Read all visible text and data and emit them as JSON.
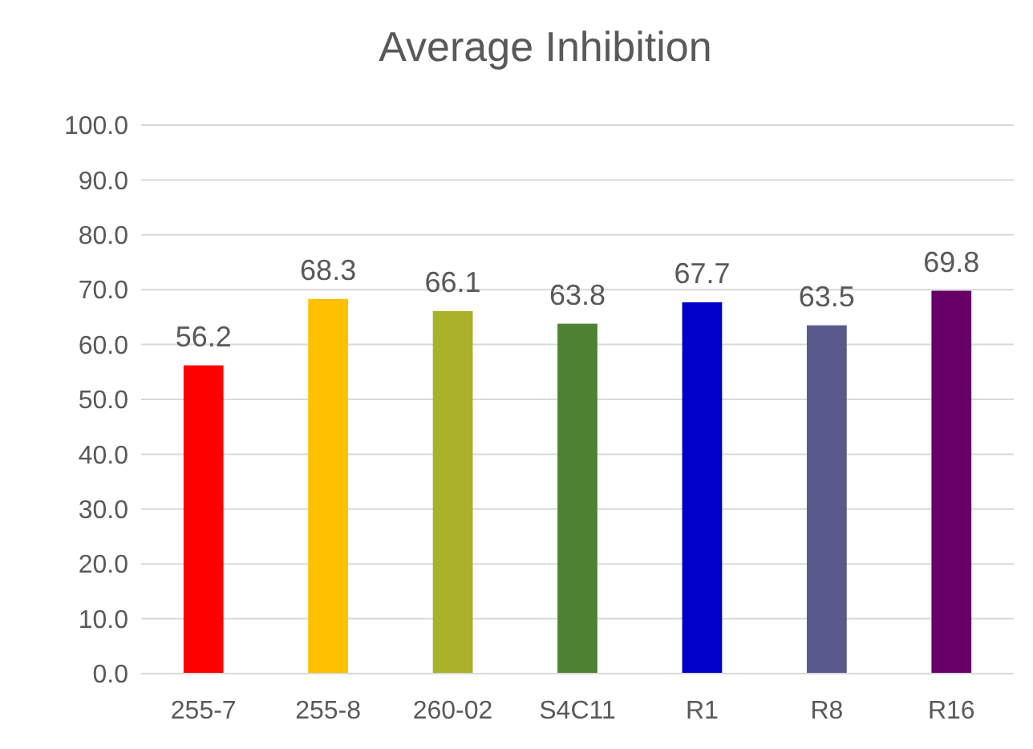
{
  "chart_data": {
    "type": "bar",
    "title": "Average Inhibition",
    "categories": [
      "255-7",
      "255-8",
      "260-02",
      "S4C11",
      "R1",
      "R8",
      "R16"
    ],
    "values": [
      56.2,
      68.3,
      66.1,
      63.8,
      67.7,
      63.5,
      69.8
    ],
    "colors": [
      "#ff0000",
      "#ffc000",
      "#a9b02a",
      "#4f8132",
      "#0000c8",
      "#575a8a",
      "#660066"
    ],
    "ylim": [
      0,
      100
    ],
    "yticks": [
      {
        "value": 0,
        "label": "0.0"
      },
      {
        "value": 10,
        "label": "10.0"
      },
      {
        "value": 20,
        "label": "20.0"
      },
      {
        "value": 30,
        "label": "30.0"
      },
      {
        "value": 40,
        "label": "40.0"
      },
      {
        "value": 50,
        "label": "50.0"
      },
      {
        "value": 60,
        "label": "60.0"
      },
      {
        "value": 70,
        "label": "70.0"
      },
      {
        "value": 80,
        "label": "80.0"
      },
      {
        "value": 90,
        "label": "90.0"
      },
      {
        "value": 100,
        "label": "100.0"
      }
    ],
    "grid": true,
    "data_labels": true
  }
}
